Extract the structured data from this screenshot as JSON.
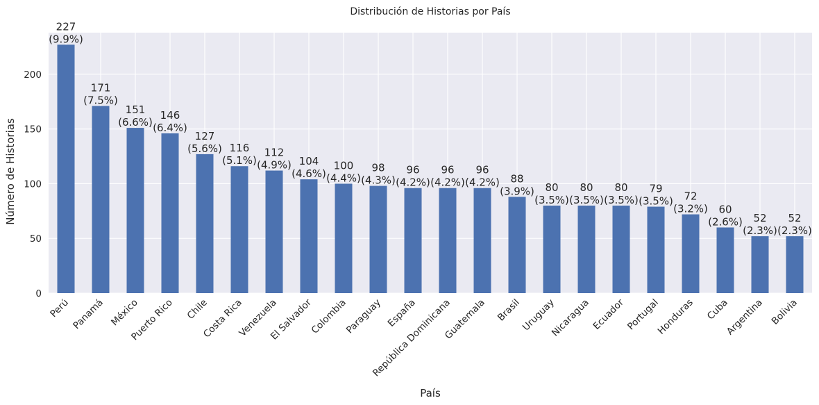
{
  "chart_data": {
    "type": "bar",
    "title": "Distribución de Historias por País",
    "xlabel": "País",
    "ylabel": "Número de Historias",
    "categories": [
      "Perú",
      "Panamá",
      "México",
      "Puerto Rico",
      "Chile",
      "Costa Rica",
      "Venezuela",
      "El Salvador",
      "Colombia",
      "Paraguay",
      "España",
      "República Dominicana",
      "Guatemala",
      "Brasil",
      "Uruguay",
      "Nicaragua",
      "Ecuador",
      "Portugal",
      "Honduras",
      "Cuba",
      "Argentina",
      "Bolivia"
    ],
    "values": [
      227,
      171,
      151,
      146,
      127,
      116,
      112,
      104,
      100,
      98,
      96,
      96,
      96,
      88,
      80,
      80,
      80,
      79,
      72,
      60,
      52,
      52
    ],
    "percent_labels": [
      "(9.9%)",
      "(7.5%)",
      "(6.6%)",
      "(6.4%)",
      "(5.6%)",
      "(5.1%)",
      "(4.9%)",
      "(4.6%)",
      "(4.4%)",
      "(4.3%)",
      "(4.2%)",
      "(4.2%)",
      "(4.2%)",
      "(3.9%)",
      "(3.5%)",
      "(3.5%)",
      "(3.5%)",
      "(3.5%)",
      "(3.2%)",
      "(2.6%)",
      "(2.3%)",
      "(2.3%)"
    ],
    "yticks": [
      0,
      50,
      100,
      150,
      200
    ],
    "ylim": [
      0,
      238
    ],
    "grid": true,
    "bar_color": "#4c72b0",
    "background_color": "#eaeaf2",
    "grid_color": "#ffffff"
  }
}
